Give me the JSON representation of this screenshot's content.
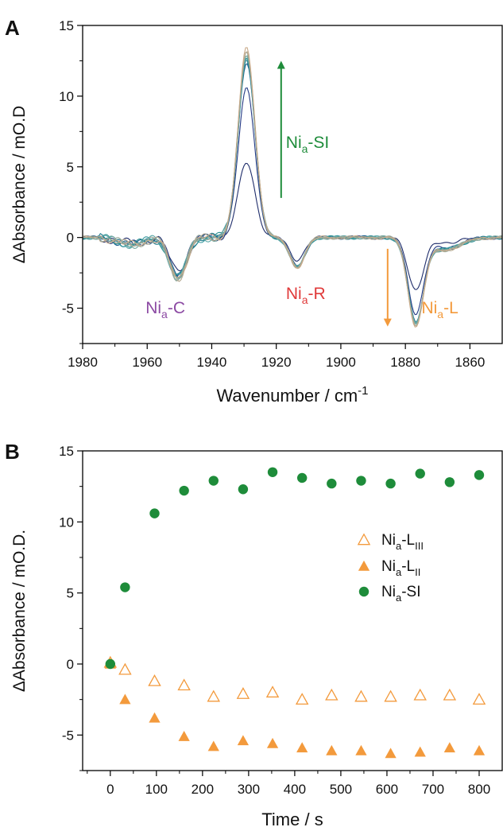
{
  "chart_data": [
    {
      "panel_label": "A",
      "type": "line",
      "xlabel": "Wavenumber / cm",
      "xlabel_sup": "-1",
      "ylabel": "ΔAbsorbance / mO.D",
      "xlim": [
        1980,
        1850
      ],
      "ylim": [
        -7.5,
        15
      ],
      "x_ticks": [
        1980,
        1960,
        1940,
        1920,
        1900,
        1880,
        1860
      ],
      "y_ticks": [
        -5,
        0,
        5,
        10,
        15
      ],
      "grid": false,
      "peak_heights": [
        5.3,
        10.5,
        12.3,
        12.5,
        12.7,
        12.8,
        12.9,
        13.0,
        13.1,
        13.2,
        13.4
      ],
      "series_colors": [
        "#1f2d6b",
        "#253a85",
        "#1b5d8f",
        "#1f7a8c",
        "#2a8f8f",
        "#3a9aa0",
        "#5aa6a6",
        "#7aa9a0",
        "#9aa99a",
        "#b5a890",
        "#c8aa8a"
      ],
      "annotations": [
        {
          "base": "Ni",
          "sub": "a",
          "rest": "-SI",
          "color": "#1e8c3a"
        },
        {
          "base": "Ni",
          "sub": "a",
          "rest": "-C",
          "color": "#8c4aa3"
        },
        {
          "base": "Ni",
          "sub": "a",
          "rest": "-R",
          "color": "#e03a3a"
        },
        {
          "base": "Ni",
          "sub": "a",
          "rest": "-L",
          "color": "#f39a3c"
        }
      ],
      "arrows": [
        {
          "color": "#1e8c3a",
          "x": 1918.5,
          "from": 2.8,
          "to": 12.5
        },
        {
          "color": "#f39a3c",
          "x": 1885.5,
          "from": -0.8,
          "to": -6.3
        }
      ]
    },
    {
      "panel_label": "B",
      "type": "scatter",
      "xlabel": "Time / s",
      "ylabel": "ΔAbsorbance / mO.D.",
      "xlim": [
        -60,
        850
      ],
      "ylim": [
        -7.5,
        15
      ],
      "x_ticks": [
        0,
        100,
        200,
        300,
        400,
        500,
        600,
        700,
        800
      ],
      "y_ticks": [
        -5,
        0,
        5,
        10,
        15
      ],
      "grid": false,
      "legend_position": "right",
      "x": [
        0,
        32,
        96,
        160,
        224,
        288,
        352,
        416,
        480,
        544,
        608,
        672,
        736,
        800
      ],
      "series": [
        {
          "name_base": "Ni",
          "name_sub": "a",
          "name_rest": "-L",
          "name_rest_sub": "III",
          "marker": "triangle-open",
          "color": "#f39a3c",
          "values": [
            0.1,
            -0.4,
            -1.2,
            -1.5,
            -2.3,
            -2.1,
            -2.0,
            -2.5,
            -2.2,
            -2.3,
            -2.3,
            -2.2,
            -2.2,
            -2.5
          ]
        },
        {
          "name_base": "Ni",
          "name_sub": "a",
          "name_rest": "-L",
          "name_rest_sub": "II",
          "marker": "triangle-filled",
          "color": "#f39a3c",
          "values": [
            0.0,
            -2.5,
            -3.8,
            -5.1,
            -5.8,
            -5.4,
            -5.6,
            -5.9,
            -6.1,
            -6.1,
            -6.3,
            -6.2,
            -5.9,
            -6.1
          ]
        },
        {
          "name_base": "Ni",
          "name_sub": "a",
          "name_rest": "-SI",
          "name_rest_sub": "",
          "marker": "circle-filled",
          "color": "#1e8c3a",
          "values": [
            0.0,
            5.4,
            10.6,
            12.2,
            12.9,
            12.3,
            13.5,
            13.1,
            12.7,
            12.9,
            12.7,
            13.4,
            12.8,
            13.3
          ]
        }
      ]
    }
  ]
}
